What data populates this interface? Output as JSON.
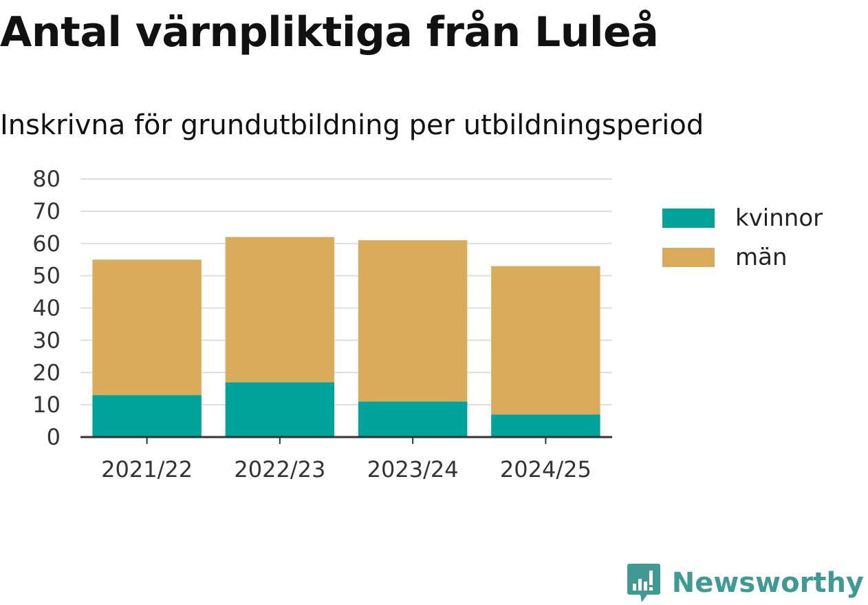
{
  "title": "Antal värnpliktiga från Luleå",
  "subtitle": "Inskrivna för grundutbildning per utbildningsperiod",
  "brand": {
    "name": "Newsworthy",
    "logo_icon": "newsworthy-logo-icon",
    "color": "#3f9a94"
  },
  "chart_data": {
    "type": "bar",
    "stacked": true,
    "title": "Antal värnpliktiga från Luleå",
    "subtitle": "Inskrivna för grundutbildning per utbildningsperiod",
    "xlabel": "",
    "ylabel": "",
    "categories": [
      "2021/22",
      "2022/23",
      "2023/24",
      "2024/25"
    ],
    "series": [
      {
        "name": "kvinnor",
        "color": "#00a39a",
        "values": [
          13,
          17,
          11,
          7
        ]
      },
      {
        "name": "män",
        "color": "#d9ab5a",
        "values": [
          42,
          45,
          50,
          46
        ]
      }
    ],
    "ylim": [
      0,
      80
    ],
    "yticks": [
      0,
      10,
      20,
      30,
      40,
      50,
      60,
      70,
      80
    ],
    "grid": true,
    "legend": "right"
  }
}
